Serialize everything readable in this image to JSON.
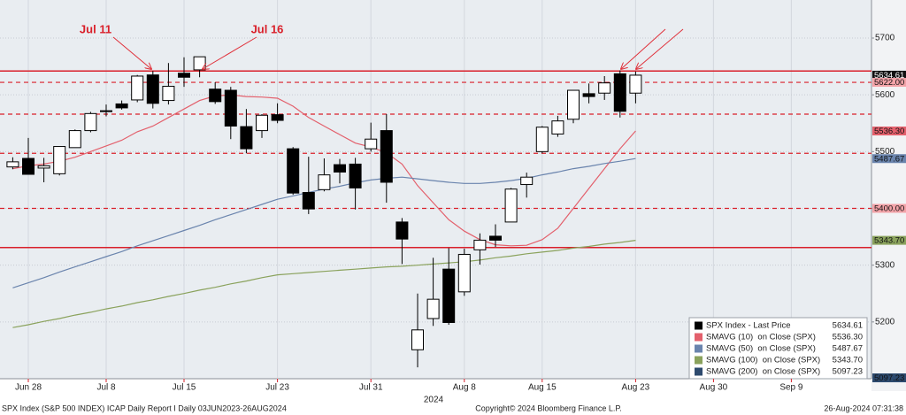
{
  "chart_data": {
    "type": "candlestick",
    "annotations": [
      "Jul 11",
      "Jul 16"
    ],
    "year_label": "2024",
    "categories": [
      null,
      "Jun 28",
      null,
      null,
      null,
      null,
      "Jul 8",
      null,
      null,
      null,
      null,
      "Jul 15",
      null,
      null,
      null,
      null,
      null,
      "Jul 23",
      null,
      null,
      null,
      null,
      null,
      "Jul 31",
      null,
      null,
      null,
      null,
      null,
      "Aug 8",
      null,
      null,
      null,
      null,
      "Aug 15",
      null,
      null,
      null,
      null,
      null,
      "Aug 23",
      null,
      null,
      null,
      null,
      "Aug 30",
      null,
      null,
      null,
      null,
      "Sep 9",
      null,
      null,
      null,
      null,
      null
    ],
    "open": [
      5473,
      5488,
      5471,
      5461,
      5507,
      5537,
      5572,
      5584,
      5591,
      5635,
      5590,
      5638,
      5644,
      5610,
      5608,
      5544,
      5537,
      5565,
      5505,
      5428,
      5433,
      5477,
      5478,
      5505,
      5537,
      5376,
      5151,
      5206,
      5293,
      5253,
      5327,
      5351,
      5376,
      5442,
      5500,
      5531,
      5557,
      5602,
      5603,
      5637,
      5603,
      null,
      null,
      null,
      null,
      null,
      null,
      null,
      null,
      null,
      null,
      null,
      null,
      null,
      null,
      null
    ],
    "high": [
      5490,
      5524,
      5489,
      5509,
      5539,
      5570,
      5583,
      5590,
      5635,
      5642,
      5656,
      5666,
      5667,
      5622,
      5614,
      5575,
      5566,
      5585,
      5508,
      5491,
      5488,
      5487,
      5489,
      5551,
      5566,
      5383,
      5250,
      5313,
      5330,
      5329,
      5356,
      5372,
      5436,
      5463,
      5545,
      5563,
      5608,
      5620,
      5633,
      5643,
      5641,
      null,
      null,
      null,
      null,
      null,
      null,
      null,
      null,
      null,
      null,
      null,
      null,
      null,
      null,
      null
    ],
    "low": [
      5469,
      5460,
      5446,
      5458,
      5507,
      5534,
      5562,
      5574,
      5587,
      5576,
      5583,
      5614,
      5631,
      5584,
      5522,
      5497,
      5524,
      5550,
      5424,
      5390,
      5430,
      5444,
      5398,
      5500,
      5410,
      5302,
      5120,
      5193,
      5195,
      5246,
      5301,
      5332,
      5376,
      5419,
      5497,
      5526,
      5550,
      5585,
      5591,
      5560,
      5585,
      null,
      null,
      null,
      null,
      null,
      null,
      null,
      null,
      null,
      null,
      null,
      null,
      null,
      null,
      null
    ],
    "close": [
      5482,
      5460,
      5475,
      5509,
      5537,
      5567,
      5572,
      5577,
      5633,
      5585,
      5615,
      5631,
      5667,
      5588,
      5545,
      5505,
      5564,
      5555,
      5427,
      5399,
      5459,
      5464,
      5436,
      5522,
      5446,
      5346,
      5186,
      5240,
      5199,
      5319,
      5344,
      5344,
      5434,
      5455,
      5543,
      5554,
      5608,
      5597,
      5621,
      5571,
      5634.61,
      null,
      null,
      null,
      null,
      null,
      null,
      null,
      null,
      null,
      null,
      null,
      null,
      null,
      null,
      null
    ],
    "up_color": "#ffffff",
    "down_color": "#000000",
    "series": [
      {
        "name": "SPX Index - Last Price",
        "color": "#000000",
        "last": 5634.61
      },
      {
        "name": "SMAVG (10)  on Close (SPX)",
        "color": "#e3606c",
        "last": 5536.3,
        "last_label": "5536.30",
        "values": [
          5470,
          5475,
          5478,
          5483,
          5490,
          5500,
          5510,
          5520,
          5535,
          5545,
          5560,
          5575,
          5590,
          5598,
          5600,
          5597,
          5596,
          5594,
          5580,
          5560,
          5545,
          5530,
          5515,
          5508,
          5498,
          5478,
          5440,
          5410,
          5380,
          5360,
          5345,
          5336,
          5334,
          5335,
          5345,
          5365,
          5400,
          5435,
          5470,
          5505,
          5536.3,
          null,
          null,
          null,
          null,
          null,
          null,
          null,
          null,
          null,
          null,
          null,
          null,
          null,
          null,
          null
        ]
      },
      {
        "name": "SMAVG (50)  on Close (SPX)",
        "color": "#6a84ad",
        "last": 5487.67,
        "values": [
          5260,
          5269,
          5278,
          5288,
          5297,
          5306,
          5315,
          5324,
          5334,
          5343,
          5352,
          5361,
          5370,
          5380,
          5389,
          5398,
          5407,
          5416,
          5422,
          5428,
          5434,
          5439,
          5445,
          5450,
          5453,
          5455,
          5452,
          5449,
          5446,
          5444,
          5444,
          5446,
          5449,
          5453,
          5459,
          5464,
          5470,
          5474,
          5479,
          5483,
          5487.67,
          null,
          null,
          null,
          null,
          null,
          null,
          null,
          null,
          null,
          null,
          null,
          null,
          null,
          null,
          null
        ]
      },
      {
        "name": "SMAVG (100)  on Close (SPX)",
        "color": "#8aa25c",
        "last": 5343.7,
        "last_label": "5343.70",
        "values": [
          5190,
          5195,
          5201,
          5206,
          5212,
          5217,
          5223,
          5228,
          5234,
          5239,
          5245,
          5250,
          5256,
          5261,
          5267,
          5272,
          5278,
          5283,
          5285,
          5287,
          5289,
          5291,
          5293,
          5295,
          5297,
          5298,
          5300,
          5302,
          5304,
          5306,
          5309,
          5313,
          5316,
          5320,
          5323,
          5326,
          5330,
          5333,
          5337,
          5340,
          5343.7,
          null,
          null,
          null,
          null,
          null,
          null,
          null,
          null,
          null,
          null,
          null,
          null,
          null,
          null,
          null
        ]
      },
      {
        "name": "SMAVG (200)  on Close (SPX)",
        "color": "#2d4a6e",
        "last": 5097.23
      }
    ],
    "levels": [
      {
        "value": 5642,
        "style": "solid",
        "color": "#d9202a"
      },
      {
        "value": 5622,
        "label": "5622.00",
        "style": "dashed",
        "color": "#d9202a"
      },
      {
        "value": 5566,
        "style": "dashed",
        "color": "#d9202a"
      },
      {
        "value": 5497.04,
        "style": "dashed",
        "color": "#d9202a"
      },
      {
        "value": 5400,
        "label": "5400.00",
        "style": "dashed",
        "color": "#d9202a"
      },
      {
        "value": 5331,
        "style": "solid",
        "color": "#d9202a"
      }
    ],
    "ylim": [
      5100,
      5767
    ],
    "yticks": [
      5200,
      5300,
      5400,
      5500,
      5600,
      5700
    ],
    "grid": true
  },
  "footer": {
    "left": "SPX Index (S&P 500 INDEX) ICAP Daily Report I  Daily 03JUN2023-26AUG2024",
    "center": "Copyright© 2024 Bloomberg Finance L.P.",
    "right": "26-Aug-2024 07:31:38"
  }
}
